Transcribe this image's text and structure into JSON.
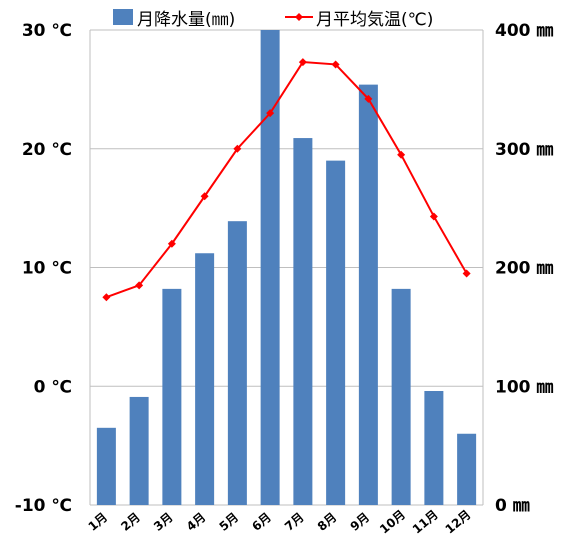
{
  "chart_data": {
    "type": "bar+line",
    "categories": [
      "1月",
      "2月",
      "3月",
      "4月",
      "5月",
      "6月",
      "7月",
      "8月",
      "9月",
      "10月",
      "11月",
      "12月"
    ],
    "series": [
      {
        "name": "月降水量(㎜)",
        "type": "bar",
        "axis": "right",
        "color": "#4f81bd",
        "values": [
          65,
          91,
          182,
          212,
          239,
          400,
          309,
          290,
          354,
          182,
          96,
          60
        ]
      },
      {
        "name": "月平均気温(℃)",
        "type": "line",
        "axis": "left",
        "color": "#ff0000",
        "marker": "diamond",
        "values": [
          7.5,
          8.5,
          12,
          16,
          20,
          23,
          27.3,
          27.1,
          24.2,
          19.5,
          14.3,
          9.5
        ]
      }
    ],
    "y_left": {
      "ticks": [
        -10,
        0,
        10,
        20,
        30
      ],
      "tick_labels": [
        "-10 ℃",
        "0 ℃",
        "10 ℃",
        "20 ℃",
        "30 ℃"
      ],
      "range": [
        -10,
        30
      ]
    },
    "y_right": {
      "ticks": [
        0,
        100,
        200,
        300,
        400
      ],
      "tick_labels": [
        "0 ㎜",
        "100 ㎜",
        "200 ㎜",
        "300 ㎜",
        "400 ㎜"
      ],
      "range": [
        0,
        400
      ]
    },
    "grid": true,
    "legend_position": "top"
  }
}
